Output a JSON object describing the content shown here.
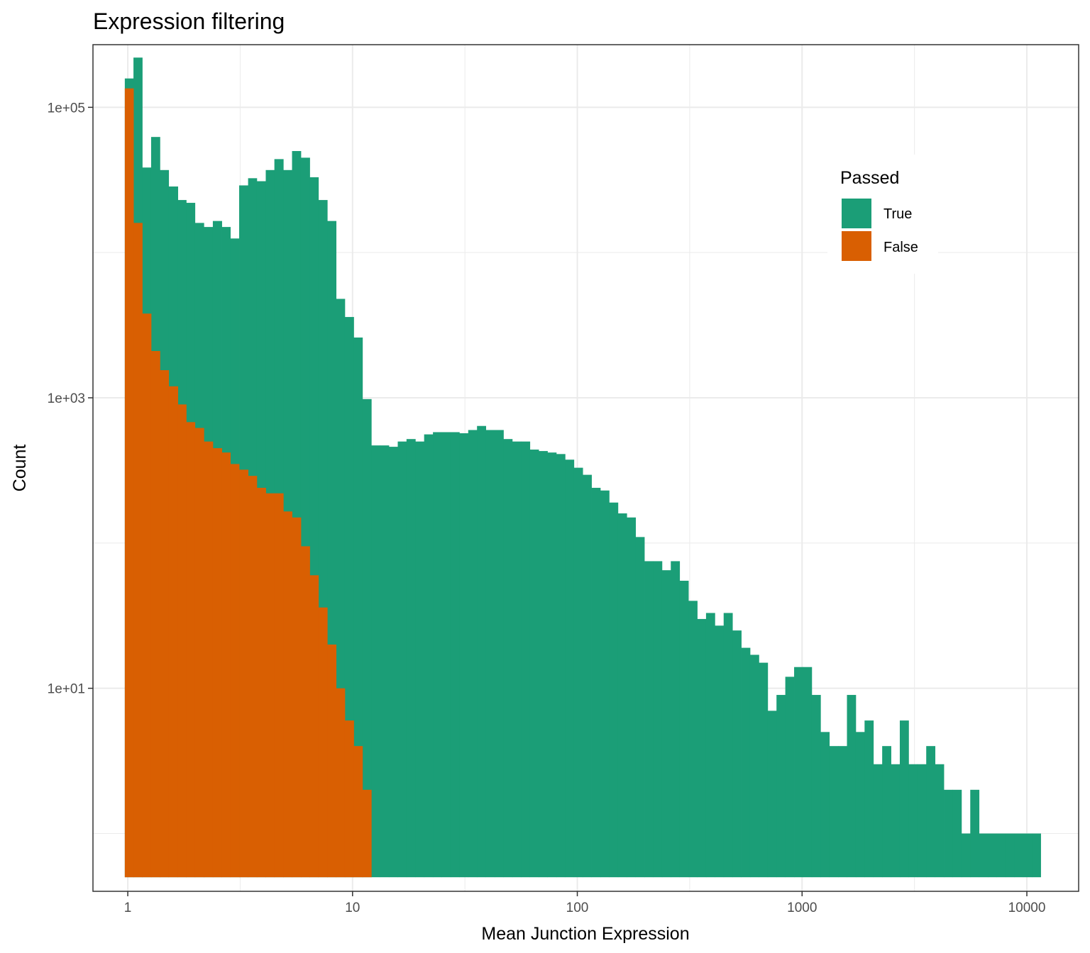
{
  "chart_data": {
    "type": "bar",
    "title": "Expression filtering",
    "xlabel": "Mean Junction Expression",
    "ylabel": "Count",
    "x_scale": "log10",
    "y_scale": "log10",
    "xlim": [
      0.7,
      17000
    ],
    "ylim": [
      0.4,
      270000
    ],
    "x_ticks": [
      "1",
      "10",
      "100",
      "1000",
      "10000"
    ],
    "y_ticks": [
      "1e+01",
      "1e+03",
      "1e+05"
    ],
    "grid": true,
    "legend": {
      "title": "Passed",
      "position": "top-right",
      "entries": [
        "True",
        "False"
      ]
    },
    "bin_lower_edges": [
      0.97,
      1.06,
      1.16,
      1.27,
      1.39,
      1.52,
      1.67,
      1.82,
      1.99,
      2.18,
      2.39,
      2.62,
      2.86,
      3.13,
      3.43,
      3.75,
      4.11,
      4.49,
      4.92,
      5.38,
      5.89,
      6.45,
      7.05,
      7.72,
      8.45,
      9.24,
      10.12,
      11.07,
      12.12,
      13.26,
      14.51,
      15.89,
      17.38,
      19.03,
      20.82,
      22.79,
      24.94,
      27.3,
      29.88,
      32.7,
      35.79,
      39.17,
      42.87,
      46.92,
      51.35,
      56.2,
      61.51,
      67.31,
      73.67,
      80.62,
      88.24,
      96.57,
      105.69,
      115.67,
      126.59,
      138.55,
      151.63,
      165.95,
      181.62,
      198.77,
      217.54,
      238.08,
      260.56,
      285.17,
      312.1,
      341.57,
      373.82,
      409.12,
      447.75,
      490.03,
      536.3,
      586.94,
      642.36,
      703.02,
      769.4,
      842.05,
      921.56,
      1008.58,
      1103.81,
      1208.04,
      1322.1,
      1446.94,
      1583.56,
      1733.09,
      1896.73,
      2075.83,
      2271.83,
      2486.35,
      2721.12,
      2978.06,
      3259.26,
      3567.01,
      3903.82,
      4272.44,
      4675.86,
      5117.37,
      5600.57,
      6129.4,
      6708.15,
      7341.56,
      8034.76,
      8793.43,
      9623.73,
      10532.44
    ],
    "bin_upper_edge": 11526.96,
    "series": [
      {
        "name": "True",
        "color": "#1b9e77",
        "values": [
          158000,
          220000,
          38500,
          62500,
          37000,
          28500,
          23000,
          22000,
          16000,
          15000,
          16500,
          15000,
          12500,
          29000,
          32500,
          31000,
          37000,
          44000,
          37000,
          50000,
          45000,
          33000,
          23000,
          16500,
          4800,
          3600,
          2600,
          980,
          470,
          470,
          460,
          500,
          520,
          500,
          560,
          580,
          580,
          580,
          570,
          600,
          640,
          600,
          600,
          520,
          500,
          500,
          440,
          430,
          420,
          410,
          375,
          330,
          295,
          240,
          230,
          190,
          160,
          150,
          110,
          75,
          75,
          65,
          75,
          55,
          40,
          30,
          33,
          27,
          33,
          25,
          19,
          17,
          15,
          7,
          9,
          12,
          14,
          14,
          9,
          5,
          4,
          4,
          9,
          5,
          6,
          3,
          4,
          3,
          6,
          3,
          3,
          4,
          3,
          2,
          2,
          1,
          2,
          1,
          1,
          1,
          1,
          1,
          1,
          1
        ]
      },
      {
        "name": "False",
        "color": "#d95f02",
        "values": [
          135000,
          16000,
          3800,
          2100,
          1550,
          1200,
          900,
          680,
          620,
          500,
          450,
          420,
          350,
          320,
          290,
          240,
          220,
          220,
          165,
          150,
          95,
          60,
          36,
          20,
          10,
          6,
          4,
          2,
          0,
          0,
          0,
          0,
          0,
          0,
          0,
          0,
          0,
          0,
          0,
          0,
          0,
          0,
          0,
          0,
          0,
          0,
          0,
          0,
          0,
          0,
          0,
          0,
          0,
          0,
          0,
          0,
          0,
          0,
          0,
          0,
          0,
          0,
          0,
          0,
          0,
          0,
          0,
          0,
          0,
          0,
          0,
          0,
          0,
          0,
          0,
          0,
          0,
          0,
          0,
          0,
          0,
          0,
          0,
          0,
          0,
          0,
          0,
          0,
          0,
          0,
          0,
          0,
          0,
          0,
          0,
          0,
          0,
          0,
          0,
          0,
          0,
          0,
          0,
          0
        ]
      }
    ]
  }
}
